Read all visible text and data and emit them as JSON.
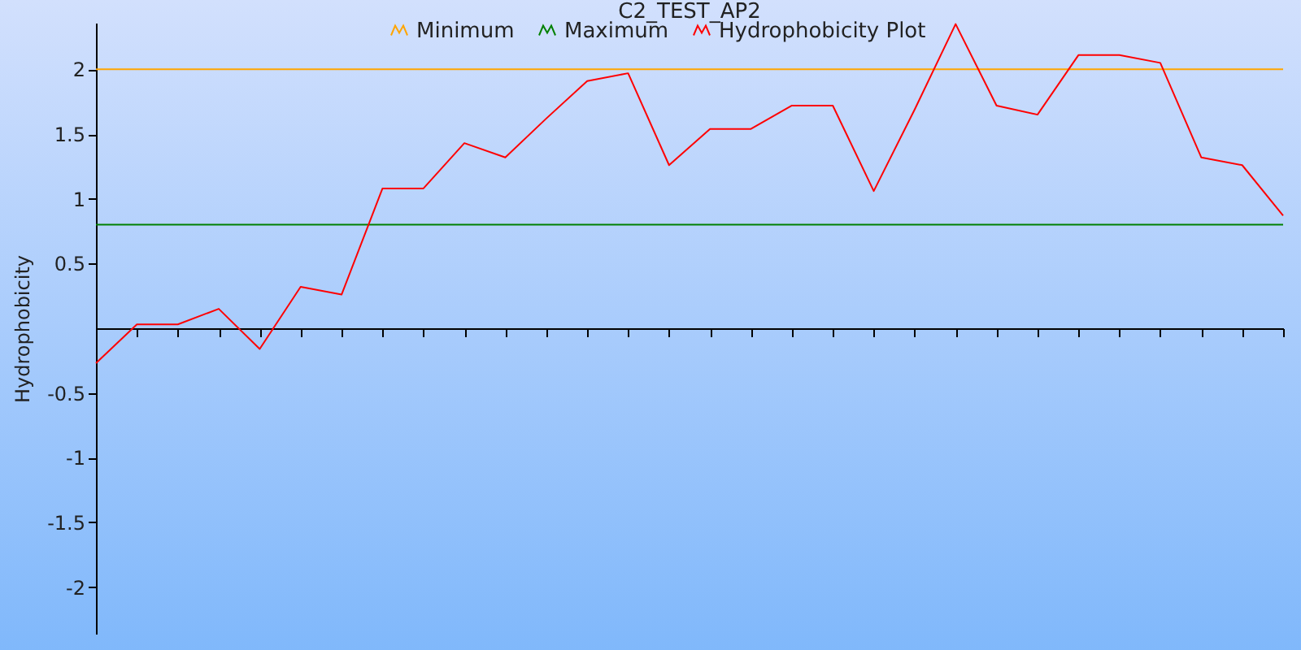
{
  "chart_data": {
    "type": "line",
    "title": "C2_TEST_AP2",
    "ylabel": "Hydrophobicity",
    "categories": [
      null,
      null,
      null,
      null,
      null,
      null,
      null,
      null,
      null,
      null,
      null,
      null,
      null,
      null,
      null,
      null,
      null,
      null,
      null,
      null,
      null,
      null,
      null,
      null,
      null,
      null,
      null,
      null,
      null,
      null
    ],
    "series": [
      {
        "name": "Minimum",
        "color": "#ffa500",
        "values": [
          2,
          2,
          2,
          2,
          2,
          2,
          2,
          2,
          2,
          2,
          2,
          2,
          2,
          2,
          2,
          2,
          2,
          2,
          2,
          2,
          2,
          2,
          2,
          2,
          2,
          2,
          2,
          2,
          2,
          2
        ]
      },
      {
        "name": "Maximum",
        "color": "#008000",
        "values": [
          0.8,
          0.8,
          0.8,
          0.8,
          0.8,
          0.8,
          0.8,
          0.8,
          0.8,
          0.8,
          0.8,
          0.8,
          0.8,
          0.8,
          0.8,
          0.8,
          0.8,
          0.8,
          0.8,
          0.8,
          0.8,
          0.8,
          0.8,
          0.8,
          0.8,
          0.8,
          0.8,
          0.8,
          0.8,
          0.8
        ]
      },
      {
        "name": "Hydrophobicity Plot",
        "color": "#ff0000",
        "values": [
          -0.27,
          0.03,
          0.03,
          0.15,
          -0.16,
          0.32,
          0.26,
          1.08,
          1.08,
          1.43,
          1.32,
          1.62,
          1.91,
          1.97,
          1.26,
          1.54,
          1.54,
          1.72,
          1.72,
          1.06,
          1.69,
          2.35,
          1.72,
          1.65,
          2.11,
          2.11,
          2.05,
          1.32,
          1.26,
          0.87
        ]
      }
    ],
    "ylim": [
      -2.36,
      2.36
    ],
    "yticks": [
      -2,
      -1.5,
      -1,
      -0.5,
      0.5,
      1,
      1.5,
      2
    ],
    "tick_labels": "y",
    "legend": "top",
    "marker": "none",
    "line_style": "solid"
  }
}
